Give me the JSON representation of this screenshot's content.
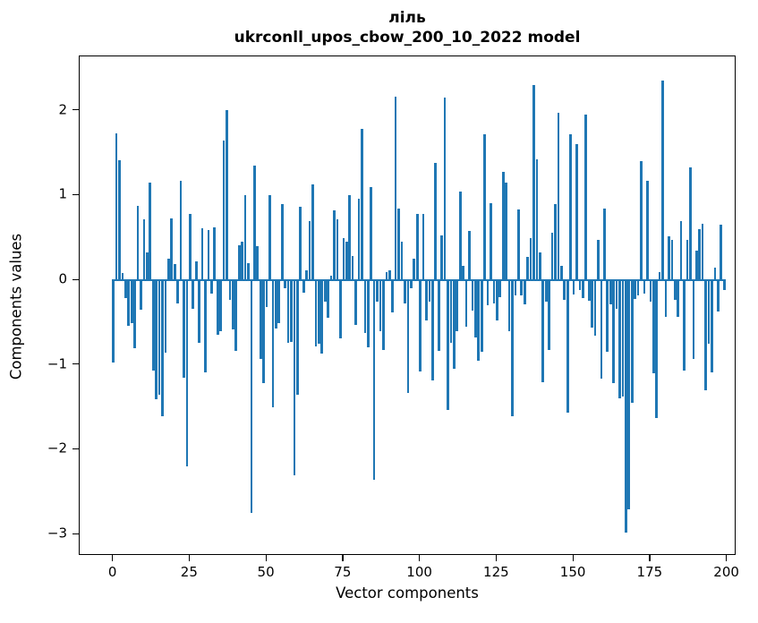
{
  "title_line1": "ліль",
  "title_line2": "ukrconll_upos_cbow_200_10_2022 model",
  "chart_data": {
    "type": "bar",
    "title": "ліль ukrconll_upos_cbow_200_10_2022 model",
    "xlabel": "Vector components",
    "ylabel": "Components values",
    "x_tick_values": [
      0,
      25,
      50,
      75,
      100,
      125,
      150,
      175,
      200
    ],
    "x_tick_labels": [
      "0",
      "25",
      "50",
      "75",
      "100",
      "125",
      "150",
      "175",
      "200"
    ],
    "y_tick_values": [
      2,
      1,
      0,
      -1,
      -2,
      -3
    ],
    "y_tick_labels": [
      "2",
      "1",
      "0",
      "−1",
      "−2",
      "−3"
    ],
    "ylim": [
      -3.25,
      2.64
    ],
    "xlim": [
      -11,
      203
    ],
    "grid": false,
    "legend": null,
    "bar_color": "#1f77b4",
    "n_components": 200,
    "values": [
      -0.97,
      1.73,
      1.42,
      0.08,
      -0.21,
      -0.54,
      -0.51,
      -0.8,
      0.88,
      -0.35,
      0.72,
      0.33,
      1.15,
      -1.07,
      -1.4,
      -1.35,
      -1.6,
      -0.86,
      0.25,
      0.73,
      0.19,
      -0.27,
      1.17,
      -1.15,
      -2.2,
      0.78,
      -0.34,
      0.22,
      -0.74,
      0.61,
      -1.09,
      0.59,
      -0.16,
      0.62,
      -0.64,
      -0.6,
      1.65,
      2.01,
      -0.23,
      -0.58,
      -0.83,
      0.41,
      0.45,
      1.0,
      0.2,
      -2.75,
      1.35,
      0.4,
      -0.93,
      -1.21,
      -0.32,
      1.0,
      -1.5,
      -0.57,
      -0.51,
      0.9,
      -0.1,
      -0.74,
      -0.73,
      -2.3,
      -1.35,
      0.87,
      -0.15,
      0.12,
      0.7,
      1.13,
      -0.78,
      -0.75,
      -0.87,
      -0.25,
      -0.44,
      0.05,
      0.82,
      0.72,
      -0.69,
      0.5,
      0.45,
      1.0,
      0.28,
      -0.53,
      0.96,
      1.78,
      -0.62,
      -0.79,
      1.1,
      -2.35,
      -0.25,
      -0.6,
      -0.82,
      0.1,
      0.12,
      -0.38,
      2.16,
      0.85,
      0.45,
      -0.27,
      -1.33,
      -0.1,
      0.25,
      0.78,
      -1.08,
      0.78,
      -0.48,
      -0.25,
      -1.18,
      1.38,
      -0.83,
      0.53,
      2.15,
      -1.53,
      -0.74,
      -1.05,
      -0.6,
      1.05,
      0.17,
      -0.55,
      0.58,
      -0.36,
      -0.68,
      -0.95,
      -0.85,
      1.72,
      -0.3,
      0.91,
      -0.27,
      -0.48,
      -0.2,
      1.28,
      1.15,
      -0.6,
      -1.6,
      -0.18,
      0.83,
      -0.18,
      -0.29,
      0.27,
      0.5,
      2.3,
      1.43,
      0.33,
      -1.2,
      -0.25,
      -0.82,
      0.56,
      0.9,
      1.97,
      0.17,
      -0.23,
      -1.56,
      1.72,
      -0.17,
      1.6,
      -0.12,
      -0.21,
      1.95,
      -0.24,
      -0.56,
      -0.65,
      0.47,
      -1.16,
      0.85,
      -0.85,
      -0.29,
      -1.21,
      -0.34,
      -1.39,
      -1.37,
      -2.98,
      -2.7,
      -1.45,
      -0.22,
      -0.18,
      1.4,
      -0.16,
      1.17,
      -0.25,
      -1.1,
      -1.63,
      0.1,
      2.35,
      -0.43,
      0.52,
      0.47,
      -0.23,
      -0.43,
      0.7,
      -1.07,
      0.48,
      1.33,
      -0.93,
      0.35,
      0.6,
      0.67,
      -1.3,
      -0.75,
      -1.09,
      0.15,
      -0.37,
      0.65,
      -0.12
    ]
  }
}
